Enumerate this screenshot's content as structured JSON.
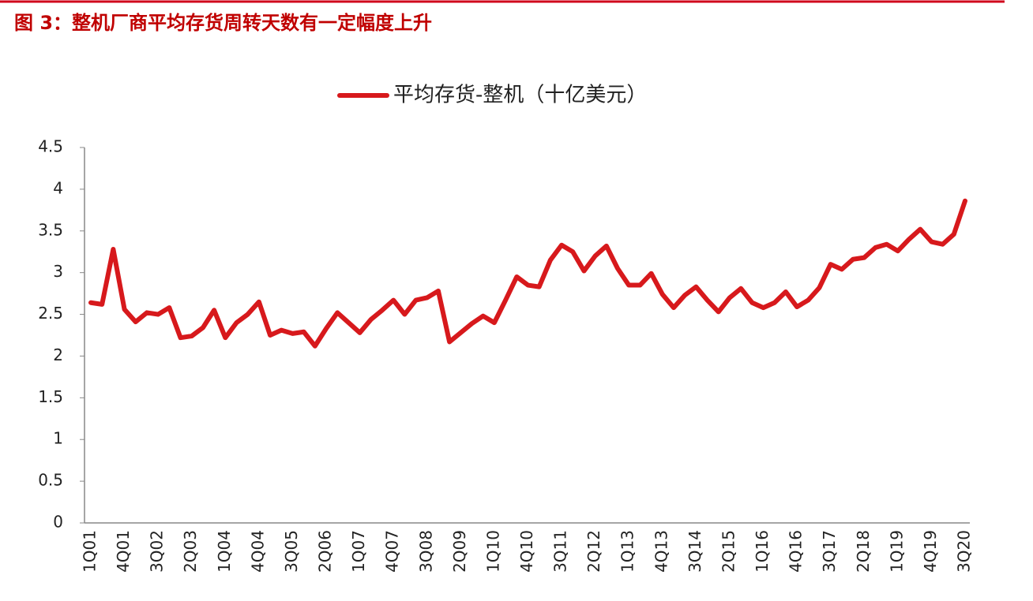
{
  "chart_data": {
    "type": "line",
    "title": "图 3：整机厂商平均存货周转天数有一定幅度上升",
    "categories": [
      "1Q01",
      null,
      null,
      "4Q01",
      null,
      null,
      "3Q02",
      null,
      null,
      "2Q03",
      null,
      null,
      "1Q04",
      null,
      null,
      "4Q04",
      null,
      null,
      "3Q05",
      null,
      null,
      "2Q06",
      null,
      null,
      "1Q07",
      null,
      null,
      "4Q07",
      null,
      null,
      "3Q08",
      null,
      null,
      "2Q09",
      null,
      null,
      "1Q10",
      null,
      null,
      "4Q10",
      null,
      null,
      "3Q11",
      null,
      null,
      "2Q12",
      null,
      null,
      "1Q13",
      null,
      null,
      "4Q13",
      null,
      null,
      "3Q14",
      null,
      null,
      "2Q15",
      null,
      null,
      "1Q16",
      null,
      null,
      "4Q16",
      null,
      null,
      "3Q17",
      null,
      null,
      "2Q18",
      null,
      null,
      "1Q19",
      null,
      null,
      "4Q19",
      null,
      null,
      "3Q20"
    ],
    "series": [
      {
        "name": "平均存货-整机（十亿美元）",
        "color": "#d7191c",
        "values": [
          2.64,
          2.62,
          3.28,
          2.56,
          2.41,
          2.52,
          2.5,
          2.58,
          2.22,
          2.24,
          2.34,
          2.55,
          2.22,
          2.4,
          2.5,
          2.65,
          2.25,
          2.31,
          2.27,
          2.29,
          2.12,
          2.33,
          2.52,
          2.4,
          2.28,
          2.44,
          2.55,
          2.67,
          2.5,
          2.67,
          2.7,
          2.78,
          2.17,
          2.28,
          2.39,
          2.48,
          2.4,
          2.67,
          2.95,
          2.85,
          2.83,
          3.15,
          3.33,
          3.25,
          3.02,
          3.2,
          3.32,
          3.05,
          2.85,
          2.85,
          2.99,
          2.74,
          2.58,
          2.73,
          2.83,
          2.67,
          2.53,
          2.7,
          2.81,
          2.64,
          2.58,
          2.64,
          2.77,
          2.59,
          2.67,
          2.82,
          3.1,
          3.04,
          3.16,
          3.18,
          3.3,
          3.34,
          3.26,
          3.4,
          3.52,
          3.37,
          3.34,
          3.46,
          3.86
        ]
      }
    ],
    "ylim": [
      0,
      4.5
    ],
    "yticks": [
      0,
      0.5,
      1,
      1.5,
      2,
      2.5,
      3,
      3.5,
      4,
      4.5
    ],
    "grid": false,
    "legend": "top"
  }
}
